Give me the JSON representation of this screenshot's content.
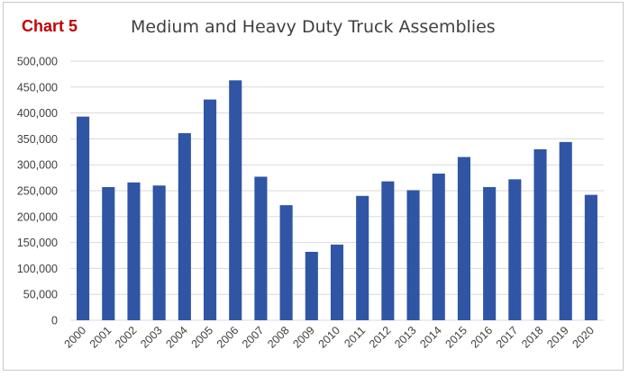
{
  "header": {
    "label": "Chart 5",
    "title": "Medium and Heavy Duty Truck Assemblies"
  },
  "colors": {
    "bar": "#2f55a4",
    "gridline": "#d9d9d9",
    "label": "#c00000",
    "text": "#404040"
  },
  "chart_data": {
    "type": "bar",
    "title": "Medium and Heavy Duty Truck Assemblies",
    "xlabel": "",
    "ylabel": "",
    "ylim": [
      0,
      500000
    ],
    "yticks": [
      0,
      50000,
      100000,
      150000,
      200000,
      250000,
      300000,
      350000,
      400000,
      450000,
      500000
    ],
    "ytick_labels": [
      "0",
      "50,000",
      "100,000",
      "150,000",
      "200,000",
      "250,000",
      "300,000",
      "350,000",
      "400,000",
      "450,000",
      "500,000"
    ],
    "grid": true,
    "legend": "none",
    "categories": [
      "2000",
      "2001",
      "2002",
      "2003",
      "2004",
      "2005",
      "2006",
      "2007",
      "2008",
      "2009",
      "2010",
      "2011",
      "2012",
      "2013",
      "2014",
      "2015",
      "2016",
      "2017",
      "2018",
      "2019",
      "2020"
    ],
    "values": [
      393000,
      257000,
      266000,
      260000,
      361000,
      426000,
      463000,
      277000,
      222000,
      132000,
      146000,
      240000,
      268000,
      251000,
      283000,
      315000,
      257000,
      272000,
      330000,
      344000,
      242000
    ]
  }
}
